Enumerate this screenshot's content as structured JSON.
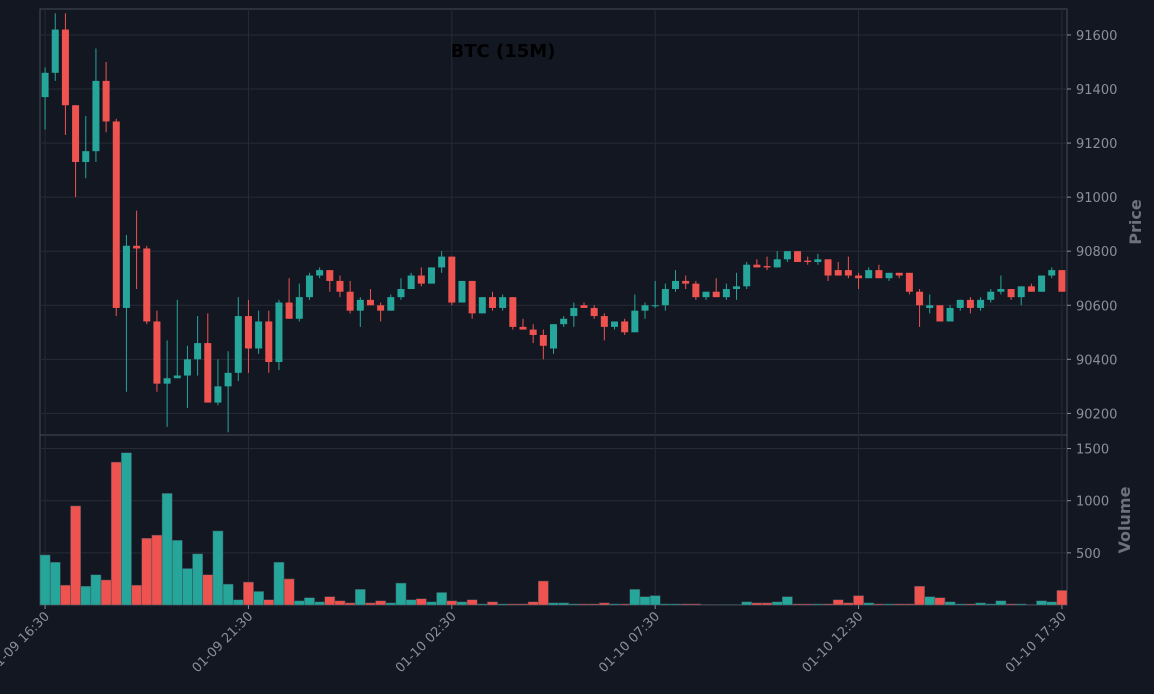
{
  "chart_data": {
    "type": "candlestick",
    "title": "BTC (15M)",
    "categories": [
      "01-09 16:30",
      null,
      null,
      null,
      null,
      null,
      null,
      null,
      null,
      null,
      null,
      null,
      null,
      null,
      null,
      null,
      null,
      null,
      null,
      null,
      "01-09 21:30",
      null,
      null,
      null,
      null,
      null,
      null,
      null,
      null,
      null,
      null,
      null,
      null,
      null,
      null,
      null,
      null,
      null,
      null,
      null,
      "01-10 02:30",
      null,
      null,
      null,
      null,
      null,
      null,
      null,
      null,
      null,
      null,
      null,
      null,
      null,
      null,
      null,
      null,
      null,
      null,
      null,
      "01-10 07:30",
      null,
      null,
      null,
      null,
      null,
      null,
      null,
      null,
      null,
      null,
      null,
      null,
      null,
      null,
      null,
      null,
      null,
      null,
      null,
      "01-10 12:30",
      null,
      null,
      null,
      null,
      null,
      null,
      null,
      null,
      null,
      null,
      null,
      null,
      null,
      null,
      null,
      null,
      null,
      null,
      null,
      "01-10 17:30"
    ],
    "open": [
      91370,
      91460,
      91620,
      91340,
      91130,
      91170,
      91430,
      91280,
      90590,
      90820,
      90810,
      90540,
      90310,
      90330,
      90340,
      90400,
      90460,
      90240,
      90300,
      90350,
      90560,
      90440,
      90540,
      90390,
      90610,
      90550,
      90630,
      90710,
      90730,
      90690,
      90650,
      90580,
      90620,
      90600,
      90580,
      90630,
      90660,
      90710,
      90680,
      90740,
      90780,
      90610,
      90690,
      90570,
      90630,
      90590,
      90630,
      90520,
      90510,
      90490,
      90440,
      90530,
      90560,
      90600,
      90590,
      90560,
      90520,
      90540,
      90500,
      90580,
      90600,
      90600,
      90660,
      90690,
      90680,
      90630,
      90650,
      90630,
      90660,
      90670,
      90750,
      90745,
      90740,
      90770,
      90800,
      90765,
      90760,
      90770,
      90730,
      90730,
      90710,
      90700,
      90730,
      90700,
      90720,
      90720,
      90650,
      90590,
      90600,
      90540,
      90590,
      90620,
      90590,
      90620,
      90650,
      90660,
      90630,
      90670,
      90650,
      90710,
      90730
    ],
    "high": [
      91480,
      91680,
      91680,
      91340,
      91300,
      91550,
      91500,
      91290,
      90860,
      90950,
      90820,
      90580,
      90470,
      90620,
      90450,
      90560,
      90570,
      90400,
      90430,
      90630,
      90620,
      90580,
      90580,
      90620,
      90700,
      90680,
      90720,
      90740,
      90730,
      90710,
      90690,
      90630,
      90660,
      90610,
      90640,
      90700,
      90720,
      90740,
      90740,
      90800,
      90780,
      90690,
      90690,
      90630,
      90650,
      90640,
      90630,
      90550,
      90530,
      90510,
      90530,
      90560,
      90610,
      90610,
      90600,
      90570,
      90540,
      90550,
      90640,
      90610,
      90690,
      90680,
      90730,
      90710,
      90690,
      90650,
      90700,
      90680,
      90720,
      90760,
      90770,
      90780,
      90800,
      90800,
      90800,
      90780,
      90790,
      90770,
      90760,
      90780,
      90720,
      90740,
      90750,
      90720,
      90720,
      90720,
      90660,
      90640,
      90600,
      90600,
      90620,
      90630,
      90630,
      90660,
      90710,
      90660,
      90670,
      90680,
      90710,
      90740,
      90730
    ],
    "low": [
      91250,
      91430,
      91230,
      91000,
      91070,
      91130,
      91240,
      90560,
      90280,
      90660,
      90530,
      90280,
      90150,
      90330,
      90220,
      90340,
      90240,
      90230,
      90130,
      90320,
      90350,
      90420,
      90350,
      90360,
      90550,
      90540,
      90620,
      90700,
      90650,
      90630,
      90570,
      90520,
      90600,
      90540,
      90580,
      90620,
      90660,
      90670,
      90680,
      90720,
      90600,
      90610,
      90550,
      90570,
      90580,
      90580,
      90510,
      90510,
      90460,
      90400,
      90420,
      90520,
      90520,
      90590,
      90550,
      90470,
      90510,
      90490,
      90500,
      90550,
      90590,
      90580,
      90650,
      90660,
      90620,
      90620,
      90630,
      90620,
      90620,
      90660,
      90740,
      90730,
      90740,
      90760,
      90760,
      90750,
      90750,
      90690,
      90710,
      90700,
      90660,
      90700,
      90700,
      90690,
      90700,
      90640,
      90520,
      90570,
      90540,
      90540,
      90580,
      90570,
      90580,
      90610,
      90640,
      90620,
      90600,
      90650,
      90650,
      90700,
      90650
    ],
    "close": [
      91460,
      91620,
      91340,
      91130,
      91170,
      91430,
      91280,
      90590,
      90820,
      90810,
      90540,
      90310,
      90330,
      90340,
      90400,
      90460,
      90240,
      90300,
      90350,
      90560,
      90440,
      90540,
      90390,
      90610,
      90550,
      90630,
      90710,
      90730,
      90690,
      90650,
      90580,
      90620,
      90600,
      90580,
      90630,
      90660,
      90710,
      90680,
      90740,
      90780,
      90610,
      90690,
      90570,
      90630,
      90590,
      90630,
      90520,
      90510,
      90490,
      90450,
      90530,
      90550,
      90590,
      90590,
      90560,
      90520,
      90540,
      90500,
      90580,
      90600,
      90600,
      90660,
      90690,
      90680,
      90630,
      90650,
      90630,
      90660,
      90670,
      90750,
      90740,
      90740,
      90770,
      90800,
      90760,
      90760,
      90770,
      90710,
      90710,
      90710,
      90700,
      90730,
      90700,
      90720,
      90710,
      90650,
      90600,
      90600,
      90540,
      90590,
      90620,
      90590,
      90620,
      90650,
      90660,
      90630,
      90670,
      90650,
      90710,
      90730,
      90650
    ],
    "volume": [
      480,
      410,
      190,
      950,
      180,
      290,
      240,
      1370,
      1460,
      190,
      640,
      670,
      1070,
      620,
      350,
      490,
      290,
      710,
      200,
      50,
      220,
      130,
      50,
      410,
      250,
      40,
      70,
      30,
      80,
      40,
      20,
      150,
      20,
      40,
      20,
      210,
      50,
      60,
      30,
      120,
      40,
      30,
      50,
      10,
      30,
      10,
      10,
      10,
      30,
      230,
      20,
      20,
      10,
      10,
      10,
      20,
      10,
      10,
      150,
      80,
      90,
      10,
      10,
      10,
      10,
      5,
      5,
      5,
      5,
      30,
      20,
      20,
      30,
      80,
      10,
      10,
      10,
      10,
      50,
      20,
      90,
      20,
      10,
      10,
      10,
      10,
      180,
      80,
      70,
      30,
      10,
      10,
      20,
      10,
      40,
      10,
      10,
      5,
      40,
      30,
      140
    ],
    "ylim": [
      90120,
      91696
    ],
    "yticks": [
      90200,
      90400,
      90600,
      90800,
      91000,
      91200,
      91400,
      91600
    ],
    "ylabel": "Price",
    "volume_ylim": [
      0,
      1630
    ],
    "volume_yticks": [
      500,
      1000,
      1500
    ],
    "volume_ylabel": "Volume",
    "up_color": "#26a69a",
    "down_color": "#ef5350",
    "grid": true
  }
}
